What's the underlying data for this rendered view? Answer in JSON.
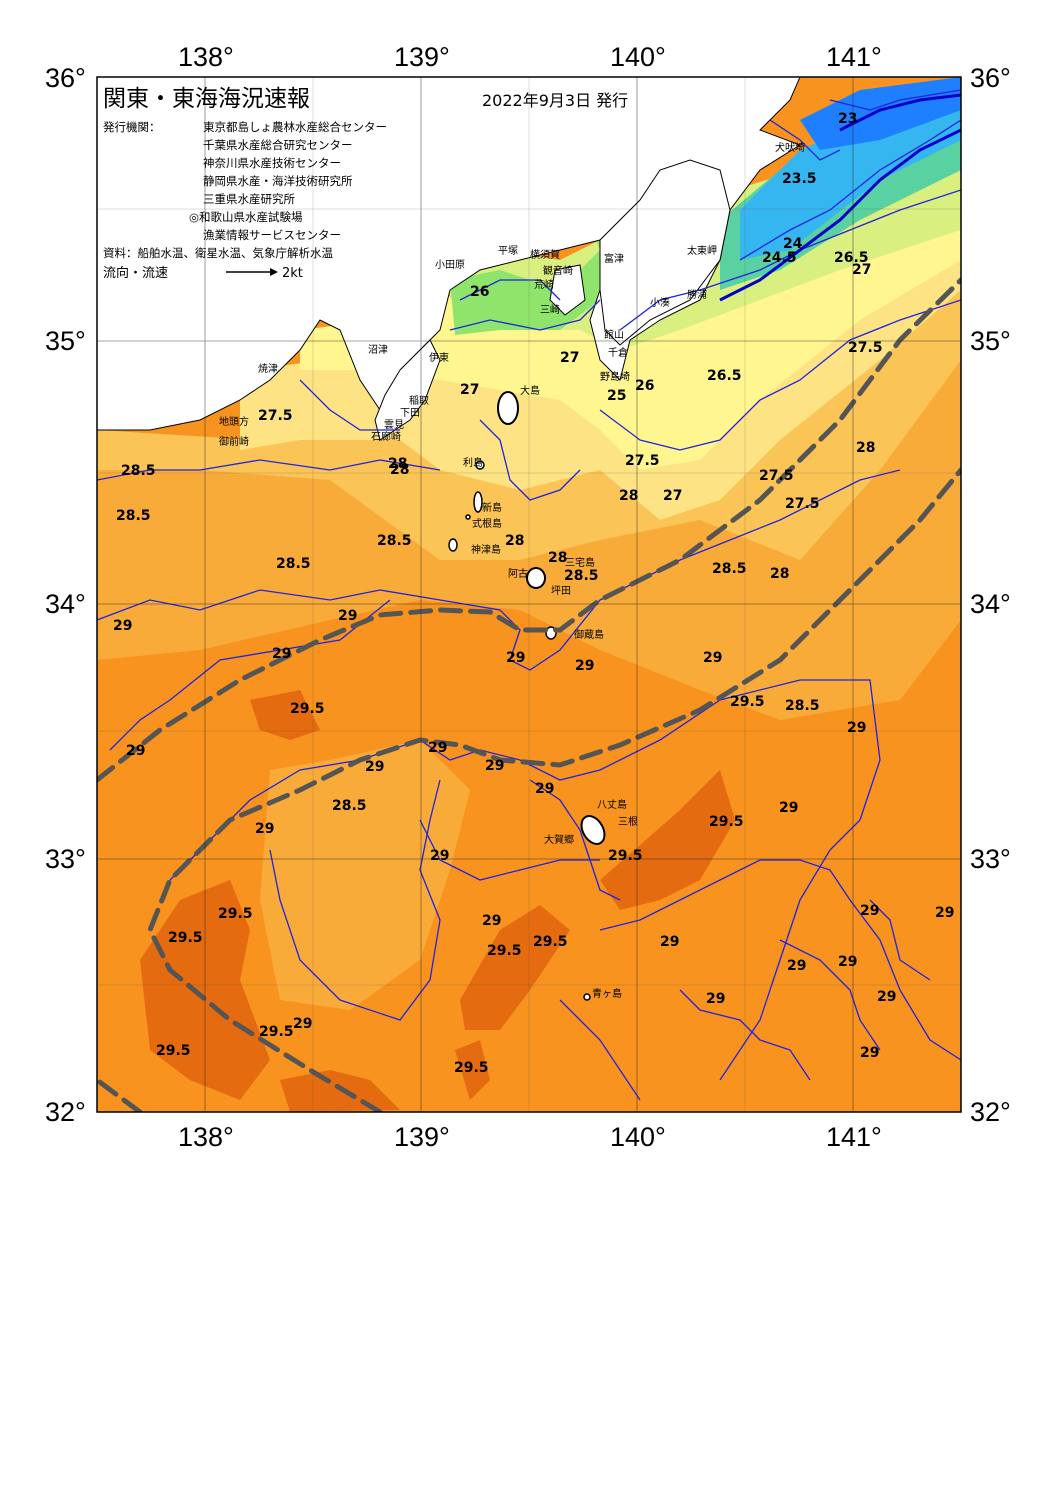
{
  "map": {
    "title": "関東・東海海況速報",
    "date": "2022年9月3日 発行",
    "issuer_label": "発行機関：",
    "issuers": [
      "東京都島しょ農林水産総合センター",
      "千葉県水産総合研究センター",
      "神奈川県水産技術センター",
      "静岡県水産・海洋技術研究所",
      "三重県水産研究所",
      "◎和歌山県水産試験場",
      "漁業情報サービスセンター"
    ],
    "sources": "資料：船舶水温、衛星水温、気象庁解析水温",
    "flow_label": "流向・流速",
    "flow_scale": "2kt",
    "lon_labels": [
      "138°",
      "139°",
      "140°",
      "141°"
    ],
    "lat_labels": [
      "36°",
      "35°",
      "34°",
      "33°",
      "32°"
    ],
    "colors": {
      "sea_29": "#f7931e",
      "sea_285": "#f9ab3a",
      "sea_28": "#fbc456",
      "sea_275": "#fde383",
      "sea_27": "#fff68f",
      "sea_26": "#d9f080",
      "sea_25": "#8fe56b",
      "sea_24": "#5ad1a0",
      "sea_23": "#35b6f0",
      "sea_22": "#1e7fff",
      "warm_295": "#e46b10",
      "land": "#ffffff",
      "isotherm": "#2222dd",
      "kuroshio": "#555555"
    }
  },
  "isotherm_labels": [
    "23",
    "23.5",
    "24.5",
    "24",
    "26.5",
    "27",
    "26",
    "25",
    "27",
    "26.5",
    "27.5",
    "28",
    "27",
    "26",
    "27.5",
    "27.5",
    "27",
    "28",
    "27.5",
    "28",
    "28.5",
    "28.5",
    "28.5",
    "28.5",
    "28",
    "28",
    "28.5",
    "28",
    "28.5",
    "29",
    "29",
    "29",
    "29.5",
    "29",
    "29",
    "29.5",
    "28.5",
    "29",
    "29",
    "29",
    "29",
    "29",
    "29",
    "29.5",
    "29.5",
    "29",
    "29.5",
    "29.5",
    "29.5",
    "29",
    "29",
    "29",
    "29.5",
    "29",
    "29",
    "29",
    "29.5",
    "29",
    "29",
    "29",
    "29",
    "29.5",
    "29.5",
    "29",
    "28.5",
    "29",
    "29",
    "28",
    "27.5"
  ],
  "places": [
    "犬吠埼",
    "太東岬",
    "勝浦",
    "小湊",
    "富津",
    "館山",
    "千倉",
    "野島埼",
    "横須賀",
    "観音崎",
    "荒崎",
    "三崎",
    "平塚",
    "小田原",
    "伊東",
    "沼津",
    "稲取",
    "下田",
    "雲見",
    "石廊崎",
    "焼津",
    "地頭方",
    "御前崎",
    "大島",
    "利島",
    "新島",
    "式根島",
    "神津島",
    "三宅島",
    "阿古",
    "坪田",
    "御蔵島",
    "八丈島",
    "三根",
    "大賀郷",
    "青ヶ島"
  ]
}
